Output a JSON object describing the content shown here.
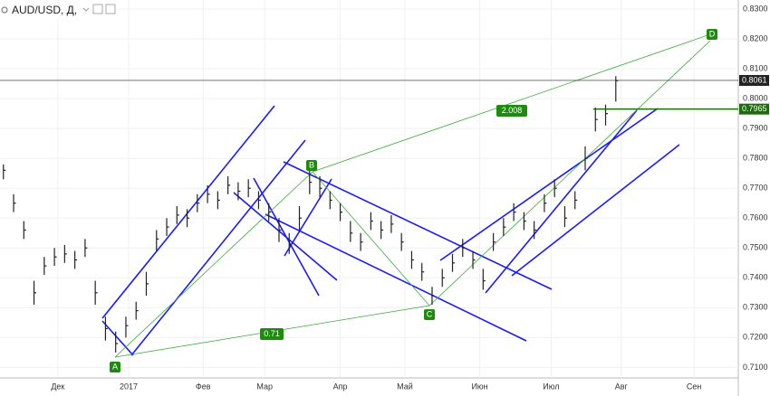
{
  "chart_data": {
    "type": "ohlc",
    "title": "AUD/USD, Д,",
    "color": "#222222",
    "grid": true,
    "x": [
      0,
      3,
      6,
      9,
      12,
      15,
      18,
      21,
      24,
      27,
      30,
      33,
      36,
      39,
      42,
      45,
      48,
      51,
      54,
      57,
      60,
      63,
      66,
      69,
      72,
      75,
      78,
      81,
      84,
      87,
      90,
      93,
      96,
      99,
      102,
      105,
      108,
      111,
      114,
      117,
      120,
      123,
      126,
      129,
      132,
      135,
      138,
      141,
      144,
      147,
      150,
      153,
      156,
      159,
      162,
      165,
      168,
      171,
      174,
      177,
      180
    ],
    "close": [
      0.776,
      0.765,
      0.756,
      0.735,
      0.744,
      0.747,
      0.748,
      0.746,
      0.75,
      0.735,
      0.723,
      0.718,
      0.724,
      0.729,
      0.738,
      0.753,
      0.757,
      0.761,
      0.76,
      0.765,
      0.768,
      0.766,
      0.771,
      0.769,
      0.77,
      0.766,
      0.762,
      0.756,
      0.751,
      0.76,
      0.772,
      0.77,
      0.766,
      0.762,
      0.755,
      0.752,
      0.759,
      0.756,
      0.758,
      0.752,
      0.746,
      0.742,
      0.734,
      0.74,
      0.745,
      0.75,
      0.746,
      0.739,
      0.752,
      0.757,
      0.762,
      0.759,
      0.756,
      0.765,
      0.77,
      0.76,
      0.766,
      0.78,
      0.793,
      0.795,
      0.806
    ],
    "high": [
      0.778,
      0.768,
      0.759,
      0.739,
      0.747,
      0.75,
      0.751,
      0.749,
      0.753,
      0.739,
      0.727,
      0.722,
      0.727,
      0.732,
      0.742,
      0.756,
      0.76,
      0.764,
      0.763,
      0.768,
      0.771,
      0.769,
      0.774,
      0.772,
      0.773,
      0.769,
      0.765,
      0.76,
      0.755,
      0.764,
      0.777,
      0.774,
      0.769,
      0.765,
      0.759,
      0.755,
      0.762,
      0.759,
      0.761,
      0.755,
      0.749,
      0.745,
      0.737,
      0.743,
      0.748,
      0.753,
      0.749,
      0.743,
      0.755,
      0.76,
      0.765,
      0.762,
      0.759,
      0.768,
      0.773,
      0.764,
      0.769,
      0.784,
      0.797,
      0.798,
      0.8075
    ],
    "low": [
      0.773,
      0.762,
      0.753,
      0.731,
      0.741,
      0.744,
      0.745,
      0.743,
      0.747,
      0.731,
      0.719,
      0.715,
      0.72,
      0.726,
      0.734,
      0.749,
      0.754,
      0.758,
      0.757,
      0.762,
      0.765,
      0.763,
      0.768,
      0.766,
      0.767,
      0.763,
      0.759,
      0.752,
      0.748,
      0.756,
      0.768,
      0.767,
      0.763,
      0.759,
      0.752,
      0.749,
      0.756,
      0.753,
      0.755,
      0.749,
      0.743,
      0.739,
      0.731,
      0.737,
      0.742,
      0.747,
      0.743,
      0.736,
      0.749,
      0.754,
      0.759,
      0.756,
      0.753,
      0.762,
      0.767,
      0.757,
      0.763,
      0.776,
      0.789,
      0.791,
      0.799
    ],
    "xlim": [
      -1,
      216
    ],
    "xticks": [
      {
        "value": 16,
        "label": "Дек"
      },
      {
        "value": 36.8,
        "label": "2017"
      },
      {
        "value": 58.7,
        "label": "Фев"
      },
      {
        "value": 76.8,
        "label": "Мар"
      },
      {
        "value": 99,
        "label": "Апр"
      },
      {
        "value": 118,
        "label": "Май"
      },
      {
        "value": 140,
        "label": "Июн"
      },
      {
        "value": 161,
        "label": "Июл"
      },
      {
        "value": 181.6,
        "label": "Авг"
      },
      {
        "value": 203,
        "label": "Сен"
      }
    ],
    "ylim": [
      0.83,
      0.7077
    ],
    "yticks": [
      {
        "value": 0.83,
        "label": "0.8300"
      },
      {
        "value": 0.82,
        "label": "0.8200"
      },
      {
        "value": 0.81,
        "label": "0.8100"
      },
      {
        "value": 0.8,
        "label": "0.8000"
      },
      {
        "value": 0.79,
        "label": "0.7900"
      },
      {
        "value": 0.78,
        "label": "0.7800"
      },
      {
        "value": 0.77,
        "label": "0.7700"
      },
      {
        "value": 0.76,
        "label": "0.7600"
      },
      {
        "value": 0.75,
        "label": "0.7500"
      },
      {
        "value": 0.74,
        "label": "0.7400"
      },
      {
        "value": 0.73,
        "label": "0.7300"
      },
      {
        "value": 0.72,
        "label": "0.7200"
      },
      {
        "value": 0.71,
        "label": "0.7100"
      }
    ],
    "price_labels": [
      {
        "value": 0.8061,
        "color": "#222222"
      },
      {
        "value": 0.7965,
        "color": "#1e6b0e"
      }
    ],
    "annotations": [
      "A",
      "B",
      "C",
      "D",
      "2.008",
      "0.71"
    ]
  }
}
